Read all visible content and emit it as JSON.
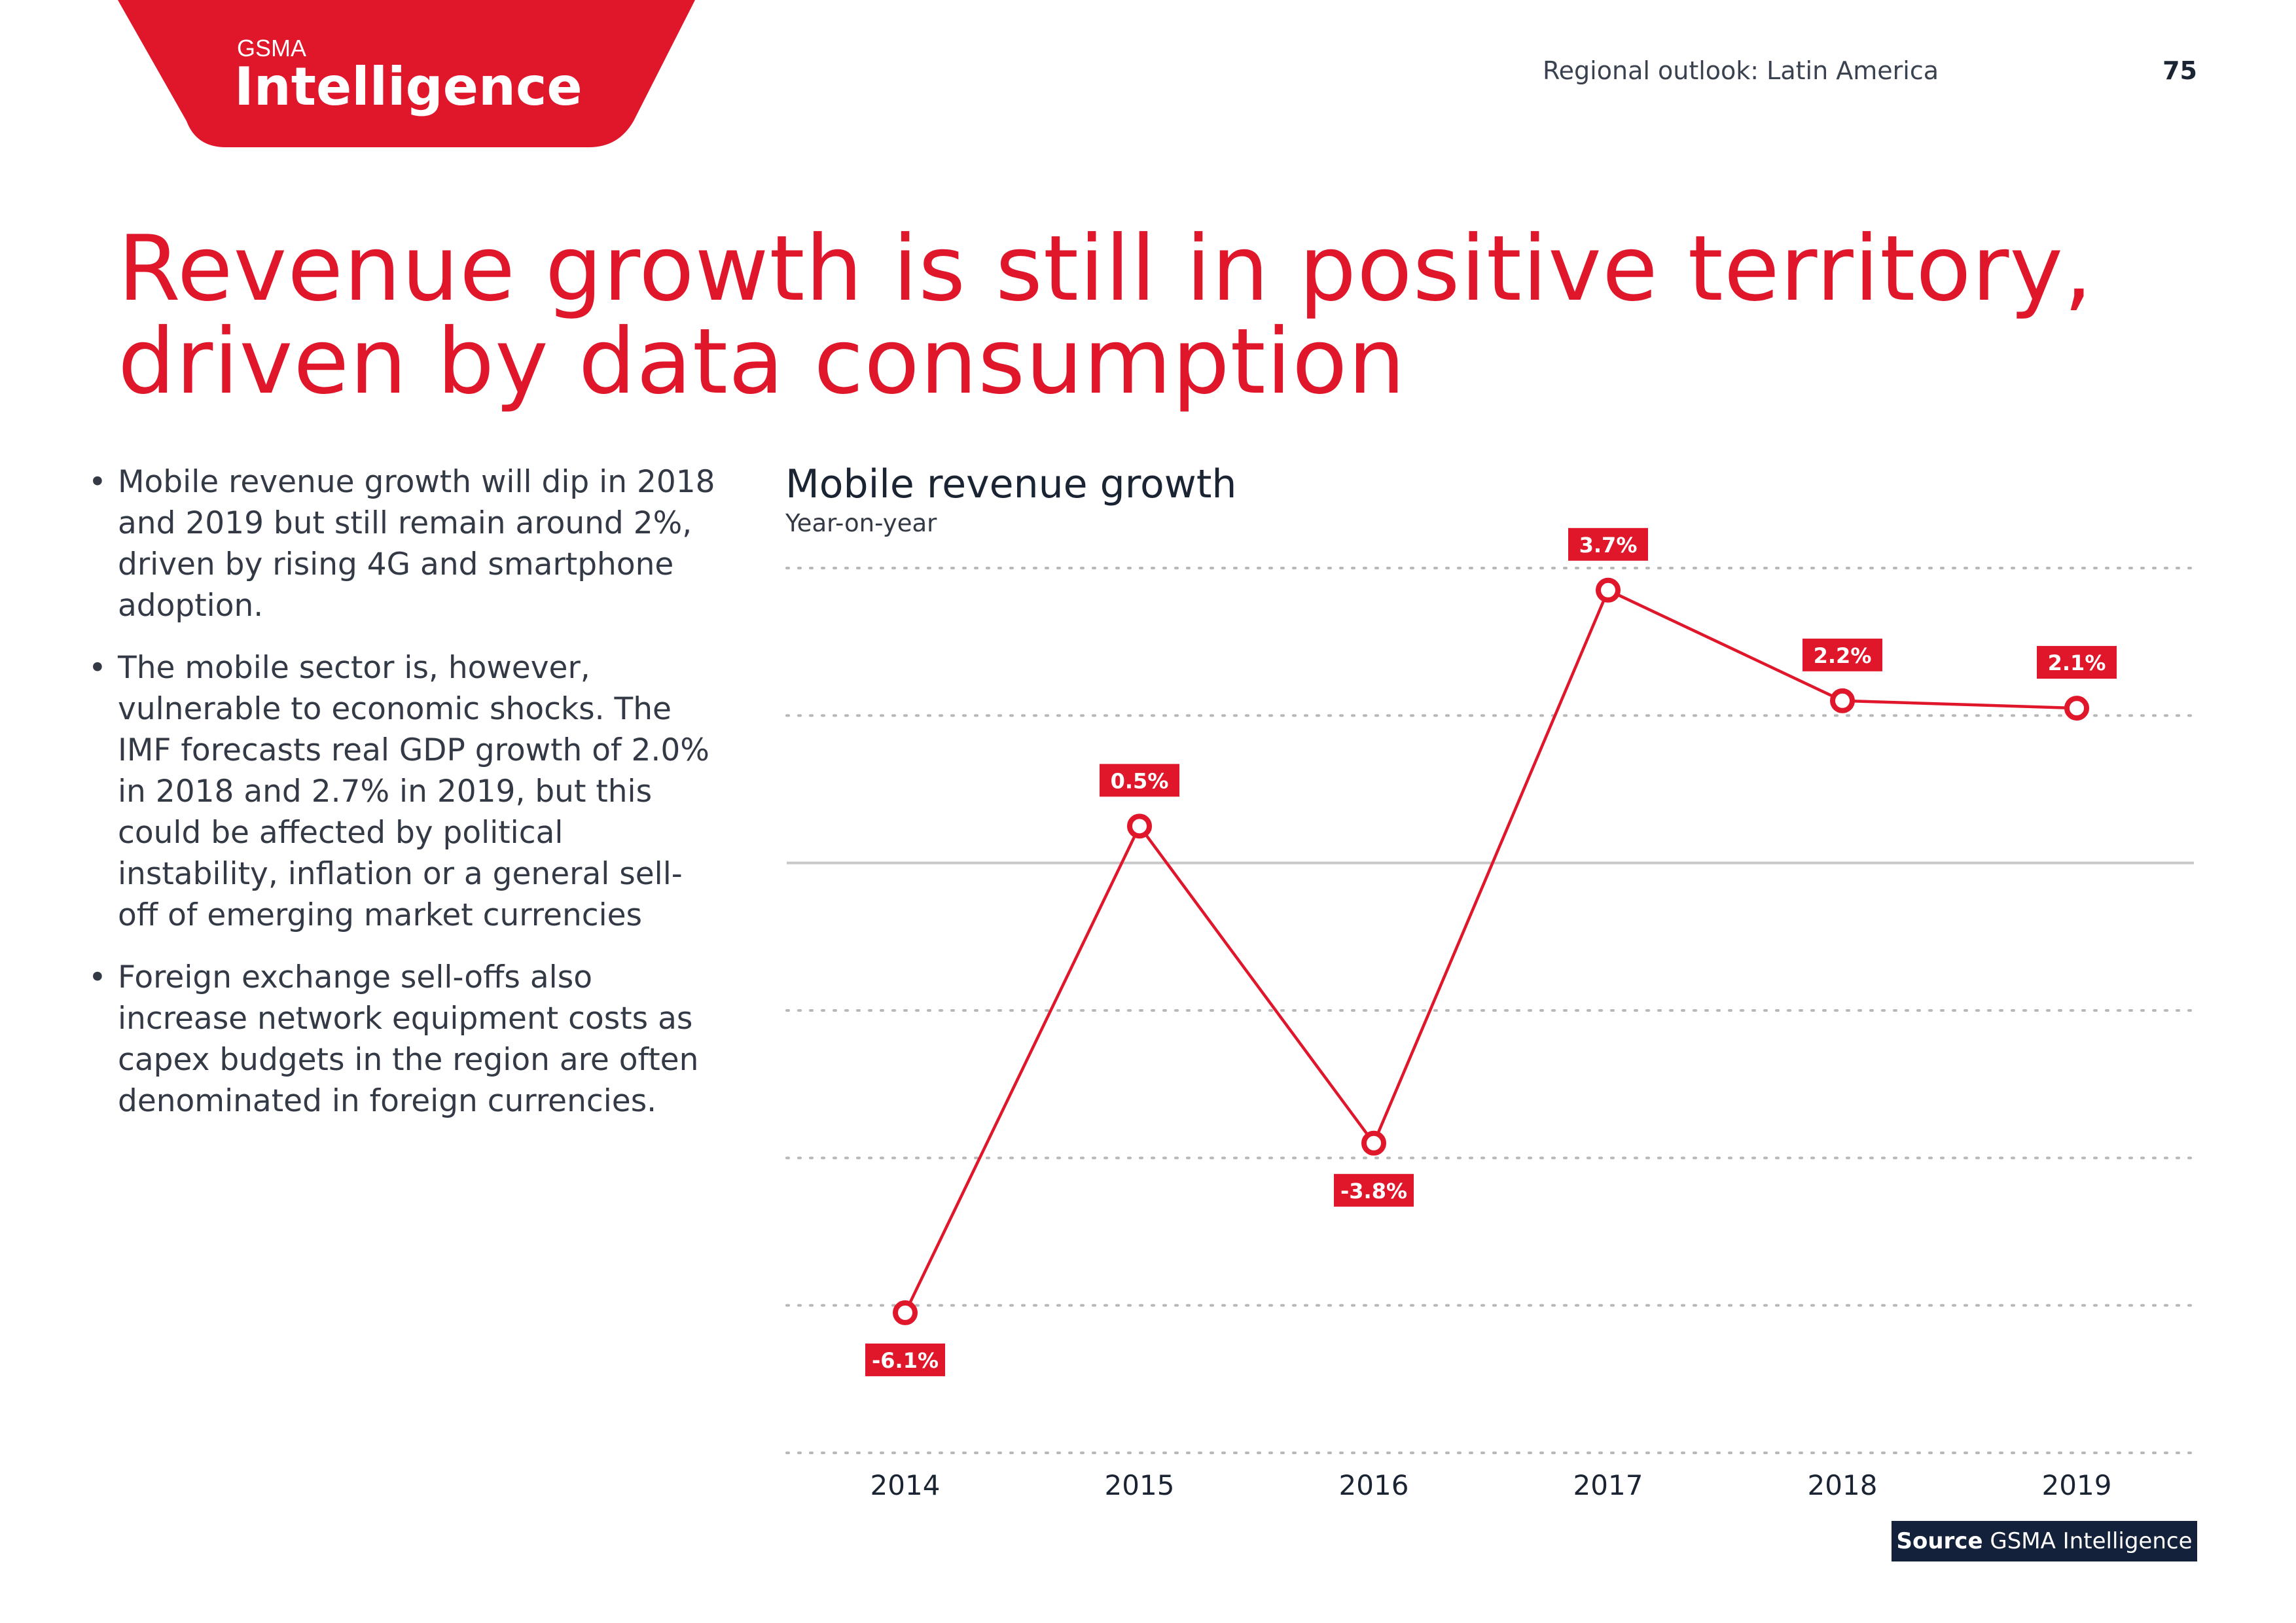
{
  "header": {
    "logo": {
      "line1": "GSMA",
      "line2": "Intelligence"
    },
    "section": "Regional outlook: Latin America",
    "page_number": "75"
  },
  "title_lines": [
    "Revenue growth is still in positive territory,",
    "driven by data consumption"
  ],
  "bullets": [
    "Mobile revenue growth will dip in 2018 and 2019 but still remain around 2%, driven by rising 4G and smartphone adoption.",
    "The mobile sector is, however, vulnerable to economic shocks. The IMF forecasts real GDP growth of 2.0% in 2018 and 2.7% in 2019, but this could be affected by political instability, inflation or a general sell-off of emerging market currencies",
    "Foreign exchange sell-offs also increase network equipment costs as capex budgets in the region are often denominated in foreign currencies."
  ],
  "source": {
    "label": "Source",
    "text": "GSMA Intelligence"
  },
  "colors": {
    "accent": "#e0162b",
    "dark": "#13213a"
  },
  "chart_data": {
    "type": "line",
    "title": "Mobile revenue growth",
    "subtitle": "Year-on-year",
    "categories": [
      "2014",
      "2015",
      "2016",
      "2017",
      "2018",
      "2019"
    ],
    "values": [
      -6.1,
      0.5,
      -3.8,
      3.7,
      2.2,
      2.1
    ],
    "data_labels": [
      "-6.1%",
      "0.5%",
      "-3.8%",
      "3.7%",
      "2.2%",
      "2.1%"
    ],
    "ylim": [
      -8,
      4
    ],
    "grid_values": [
      4,
      2,
      0,
      -2,
      -4,
      -6,
      -8
    ],
    "grid": true,
    "y_tick_labels_shown": false
  }
}
